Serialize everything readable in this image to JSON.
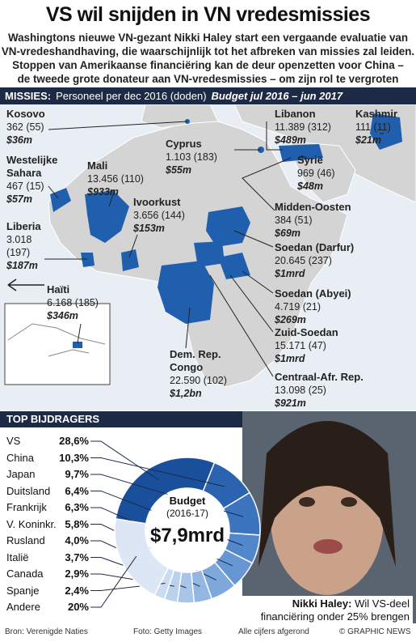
{
  "header": {
    "title": "VS wil snijden in VN vredesmissies",
    "subtitle": [
      "Washingtons nieuwe VN-gezant Nikki Haley start een vergaande evaluatie van",
      "VN-vredeshandhaving, die waarschijnlijk tot het afbreken van missies zal leiden.",
      "Stoppen van Amerikaanse financiëring kan de deur openzetten voor China –",
      "de tweede grote donateur aan VN-vredesmissies – om zijn rol te vergroten"
    ]
  },
  "missions_header": {
    "label": "MISSIES:",
    "personnel": "Personeel per dec 2016 (doden)",
    "budget": "Budget jul 2016 – jun 2017"
  },
  "missions": [
    {
      "name": "Kosovo",
      "personnel": "362 (55)",
      "budget": "$36m"
    },
    {
      "name": "Westelijke Sahara",
      "personnel": "467 (15)",
      "budget": "$57m"
    },
    {
      "name": "Mali",
      "personnel": "13.456 (110)",
      "budget": "$933m"
    },
    {
      "name": "Liberia",
      "personnel": "3.018 (197)",
      "budget": "$187m"
    },
    {
      "name": "Ivoorkust",
      "personnel": "3.656 (144)",
      "budget": "$153m"
    },
    {
      "name": "Haïti",
      "personnel": "6.168 (185)",
      "budget": "$346m"
    },
    {
      "name": "Cyprus",
      "personnel": "1.103 (183)",
      "budget": "$55m"
    },
    {
      "name": "Libanon",
      "personnel": "11.389 (312)",
      "budget": "$489m"
    },
    {
      "name": "Kashmir",
      "personnel": "111 (11)",
      "budget": "$21m"
    },
    {
      "name": "Syrië",
      "personnel": "969 (46)",
      "budget": "$48m"
    },
    {
      "name": "Midden-Oosten",
      "personnel": "384 (51)",
      "budget": "$69m"
    },
    {
      "name": "Soedan (Darfur)",
      "personnel": "20.645 (237)",
      "budget": "$1mrd"
    },
    {
      "name": "Soedan (Abyei)",
      "personnel": "4.719 (21)",
      "budget": "$269m"
    },
    {
      "name": "Zuid-Soedan",
      "personnel": "15.171 (47)",
      "budget": "$1mrd"
    },
    {
      "name": "Dem. Rep. Congo",
      "personnel": "22.590 (102)",
      "budget": "$1,2bn"
    },
    {
      "name": "Centraal-Afr. Rep.",
      "personnel": "13.098 (25)",
      "budget": "$921m"
    }
  ],
  "chart_data": {
    "type": "pie",
    "title": "TOP BIJDRAGERS",
    "categories": [
      "VS",
      "China",
      "Japan",
      "Duitsland",
      "Frankrijk",
      "V. Koninkr.",
      "Rusland",
      "Italië",
      "Canada",
      "Spanje",
      "Andere"
    ],
    "values": [
      28.6,
      10.3,
      9.7,
      6.4,
      6.3,
      5.8,
      4.0,
      3.7,
      2.9,
      2.4,
      20
    ],
    "value_labels": [
      "28,6%",
      "10,3%",
      "9,7%",
      "6,4%",
      "6,3%",
      "5,8%",
      "4,0%",
      "3,7%",
      "2,9%",
      "2,4%",
      "20%"
    ],
    "colors": [
      "#1a4f9c",
      "#2c63b0",
      "#3d74bf",
      "#5287cb",
      "#6797d3",
      "#7ea8dc",
      "#93b7e2",
      "#a8c5e8",
      "#bad1ed",
      "#cbdcf2",
      "#dde6f5"
    ],
    "center_label": "Budget",
    "center_sublabel": "(2016-17)",
    "center_value": "$7,9mrd"
  },
  "photo": {
    "caption_name": "Nikki Haley:",
    "caption_text": "Wil VS-deel financiëring onder 25% brengen"
  },
  "footer": {
    "source": "Bron: Verenigde Naties",
    "photo": "Foto: Getty Images",
    "note": "Alle cijfers afgerond",
    "credit": "© GRAPHIC NEWS"
  }
}
